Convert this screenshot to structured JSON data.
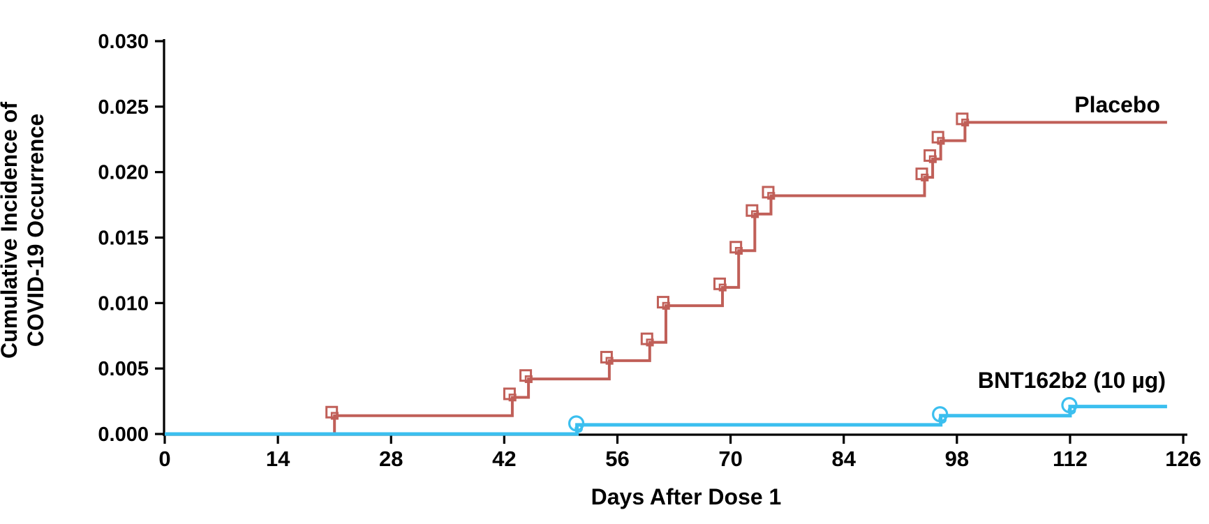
{
  "figure": {
    "background": "#ffffff",
    "axis_color": "#000000"
  },
  "chart_data": {
    "type": "line",
    "subtype": "kaplan-meier-step",
    "title": "",
    "xlabel": "Days After Dose 1",
    "ylabel_lines": [
      "Cumulative Incidence of",
      "COVID-19 Occurrence"
    ],
    "xlim": [
      0,
      126
    ],
    "ylim": [
      0.0,
      0.03
    ],
    "x_ticks": [
      0,
      14,
      28,
      42,
      56,
      70,
      84,
      98,
      112,
      126
    ],
    "y_ticks": [
      "0.000",
      "0.005",
      "0.010",
      "0.015",
      "0.020",
      "0.025",
      "0.030"
    ],
    "grid": false,
    "legend_position": "inline-right-of-curves",
    "series": [
      {
        "name": "Placebo",
        "color": "#C05F58",
        "marker": "open-square",
        "start": [
          0,
          0.0
        ],
        "end_day": 124,
        "final_value": 0.0238,
        "events": [
          [
            21,
            0.0014
          ],
          [
            43,
            0.0028
          ],
          [
            45,
            0.0042
          ],
          [
            55,
            0.0056
          ],
          [
            60,
            0.007
          ],
          [
            62,
            0.0098
          ],
          [
            69,
            0.0112
          ],
          [
            71,
            0.014
          ],
          [
            73,
            0.0168
          ],
          [
            75,
            0.0182
          ],
          [
            94,
            0.0196
          ],
          [
            95,
            0.021
          ],
          [
            96,
            0.0224
          ],
          [
            99,
            0.0238
          ]
        ]
      },
      {
        "name": "BNT162b2 (10 µg)",
        "color": "#3BBFEF",
        "marker": "open-circle",
        "start": [
          0,
          0.0
        ],
        "end_day": 124,
        "final_value": 0.0021,
        "events": [
          [
            51,
            0.0007
          ],
          [
            96,
            0.0014
          ],
          [
            112,
            0.0021
          ]
        ]
      }
    ]
  }
}
